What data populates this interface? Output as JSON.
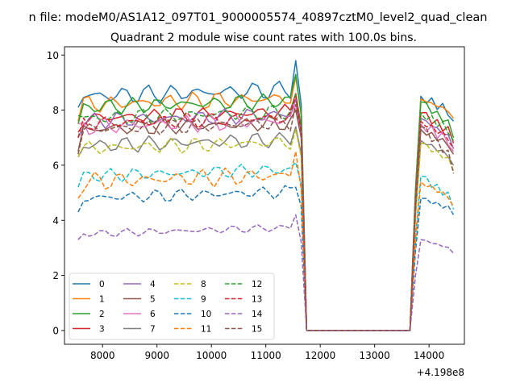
{
  "page": {
    "supertitle": "n file: modeM0/AS1A12_097T01_9000005574_40897cztM0_level2_quad_clean"
  },
  "chart_data": {
    "type": "line",
    "title": "Quadrant 2 module wise count rates with 100.0s bins.",
    "xlabel": "",
    "ylabel": "",
    "x_offset_label": "+4.198e8",
    "x_offset": 419800000,
    "xlim": [
      7300,
      14650
    ],
    "ylim": [
      -0.5,
      10.3
    ],
    "x_ticks": [
      8000,
      9000,
      10000,
      11000,
      12000,
      13000,
      14000
    ],
    "y_ticks": [
      0,
      2,
      4,
      6,
      8,
      10
    ],
    "grid": false,
    "legend": {
      "placement": "lower-left",
      "columns": 4,
      "entries": [
        "0",
        "1",
        "2",
        "3",
        "4",
        "5",
        "6",
        "7",
        "8",
        "9",
        "10",
        "11",
        "12",
        "13",
        "14",
        "15"
      ]
    },
    "colors": {
      "0": "#1f77b4",
      "1": "#ff7f0e",
      "2": "#2ca02c",
      "3": "#d62728",
      "4": "#9467bd",
      "5": "#8c564b",
      "6": "#e377c2",
      "7": "#7f7f7f",
      "8": "#bcbd22",
      "9": "#17becf",
      "10": "#1f77b4",
      "11": "#ff7f0e",
      "12": "#2ca02c",
      "13": "#d62728",
      "14": "#9467bd",
      "15": "#8c564b"
    },
    "series": [
      {
        "name": "0",
        "style": "solid",
        "level": 8.5,
        "amp": 0.35,
        "start": 8.1,
        "peak": 9.8,
        "end": 7.6,
        "rec": 8.5
      },
      {
        "name": "1",
        "style": "solid",
        "level": 8.2,
        "amp": 0.35,
        "start": 7.6,
        "peak": 9.2,
        "end": 7.7,
        "rec": 8.4
      },
      {
        "name": "2",
        "style": "solid",
        "level": 8.1,
        "amp": 0.3,
        "start": 7.5,
        "peak": 9.3,
        "end": 7.0,
        "rec": 8.3
      },
      {
        "name": "3",
        "style": "solid",
        "level": 7.7,
        "amp": 0.3,
        "start": 7.2,
        "peak": 8.6,
        "end": 6.8,
        "rec": 7.9
      },
      {
        "name": "4",
        "style": "solid",
        "level": 7.6,
        "amp": 0.3,
        "start": 7.0,
        "peak": 8.4,
        "end": 6.6,
        "rec": 7.7
      },
      {
        "name": "5",
        "style": "solid",
        "level": 7.3,
        "amp": 0.3,
        "start": 6.5,
        "peak": 8.0,
        "end": 6.4,
        "rec": 7.3
      },
      {
        "name": "6",
        "style": "solid",
        "level": 7.4,
        "amp": 0.35,
        "start": 7.5,
        "peak": 8.2,
        "end": 6.5,
        "rec": 7.5
      },
      {
        "name": "7",
        "style": "solid",
        "level": 6.7,
        "amp": 0.3,
        "start": 6.3,
        "peak": 7.4,
        "end": 6.0,
        "rec": 6.9
      },
      {
        "name": "8",
        "style": "dashed",
        "level": 6.6,
        "amp": 0.3,
        "start": 6.3,
        "peak": 7.3,
        "end": 5.8,
        "rec": 6.8
      },
      {
        "name": "9",
        "style": "dashed",
        "level": 5.6,
        "amp": 0.25,
        "start": 5.2,
        "peak": 6.1,
        "end": 4.4,
        "rec": 5.6
      },
      {
        "name": "10",
        "style": "dashed",
        "level": 4.8,
        "amp": 0.25,
        "start": 4.3,
        "peak": 5.2,
        "end": 4.2,
        "rec": 4.8
      },
      {
        "name": "11",
        "style": "dashed",
        "level": 5.4,
        "amp": 0.35,
        "start": 4.8,
        "peak": 6.5,
        "end": 4.5,
        "rec": 5.4
      },
      {
        "name": "12",
        "style": "dashed",
        "level": 7.7,
        "amp": 0.3,
        "start": 7.8,
        "peak": 8.6,
        "end": 6.9,
        "rec": 7.9
      },
      {
        "name": "13",
        "style": "dashed",
        "level": 7.5,
        "amp": 0.3,
        "start": 7.0,
        "peak": 8.5,
        "end": 6.6,
        "rec": 7.6
      },
      {
        "name": "14",
        "style": "dashed",
        "level": 3.5,
        "amp": 0.15,
        "start": 3.3,
        "peak": 4.2,
        "end": 2.8,
        "rec": 3.3
      },
      {
        "name": "15",
        "style": "dashed",
        "level": 7.3,
        "amp": 0.3,
        "start": 6.4,
        "peak": 8.2,
        "end": 5.7,
        "rec": 7.4
      }
    ],
    "time_axis": {
      "start": 7550,
      "step": 100,
      "last_high": 11650,
      "first_zero": 11750,
      "last_zero": 13650,
      "end": 14450
    }
  }
}
